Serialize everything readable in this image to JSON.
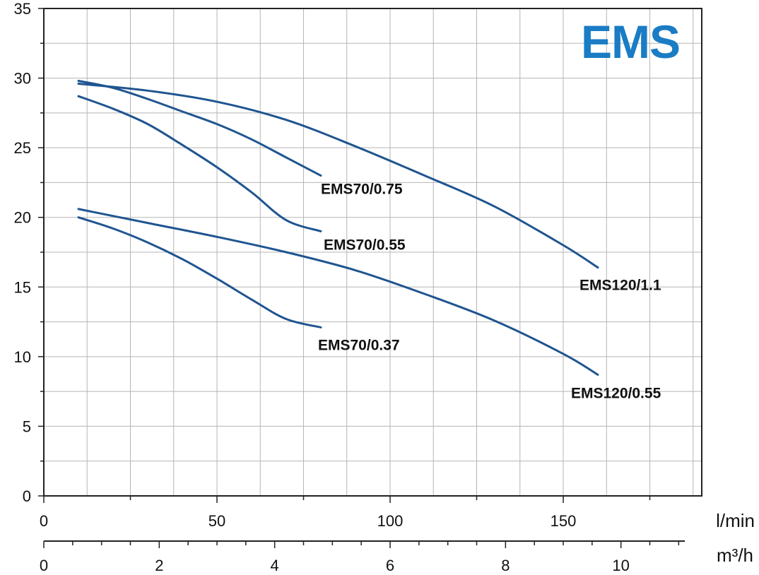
{
  "chart_data": {
    "type": "line",
    "title": "EMS",
    "brand_color": "#1a7cc4",
    "line_color": "#1f5590",
    "grid": true,
    "xlabel": "l/min",
    "x2label": "m³/h",
    "xlim": [
      0,
      190
    ],
    "ylim": [
      0,
      35
    ],
    "y_ticks": [
      0,
      5,
      10,
      15,
      20,
      25,
      30,
      35
    ],
    "x_ticks": [
      0,
      50,
      100,
      150
    ],
    "x2_ticks": [
      0,
      2,
      4,
      6,
      8,
      10
    ],
    "series": [
      {
        "name": "EMS70/0.75",
        "x": [
          10,
          20,
          30,
          40,
          50,
          60,
          70,
          80
        ],
        "y": [
          29.8,
          29.3,
          28.5,
          27.6,
          26.7,
          25.6,
          24.3,
          23.0
        ]
      },
      {
        "name": "EMS70/0.55",
        "x": [
          10,
          20,
          30,
          40,
          50,
          60,
          70,
          80
        ],
        "y": [
          28.7,
          27.8,
          26.7,
          25.2,
          23.6,
          21.8,
          19.8,
          19.0
        ]
      },
      {
        "name": "EMS120/1.1",
        "x": [
          10,
          30,
          50,
          70,
          90,
          110,
          130,
          150,
          160
        ],
        "y": [
          29.6,
          29.1,
          28.3,
          27.0,
          25.1,
          23.0,
          20.8,
          18.0,
          16.4
        ]
      },
      {
        "name": "EMS120/0.55",
        "x": [
          10,
          30,
          50,
          70,
          90,
          110,
          130,
          150,
          160
        ],
        "y": [
          20.6,
          19.6,
          18.6,
          17.5,
          16.2,
          14.5,
          12.6,
          10.2,
          8.7
        ]
      },
      {
        "name": "EMS70/0.37",
        "x": [
          10,
          20,
          30,
          40,
          50,
          60,
          70,
          80
        ],
        "y": [
          20.0,
          19.2,
          18.2,
          17.0,
          15.6,
          14.1,
          12.7,
          12.1
        ]
      }
    ]
  }
}
